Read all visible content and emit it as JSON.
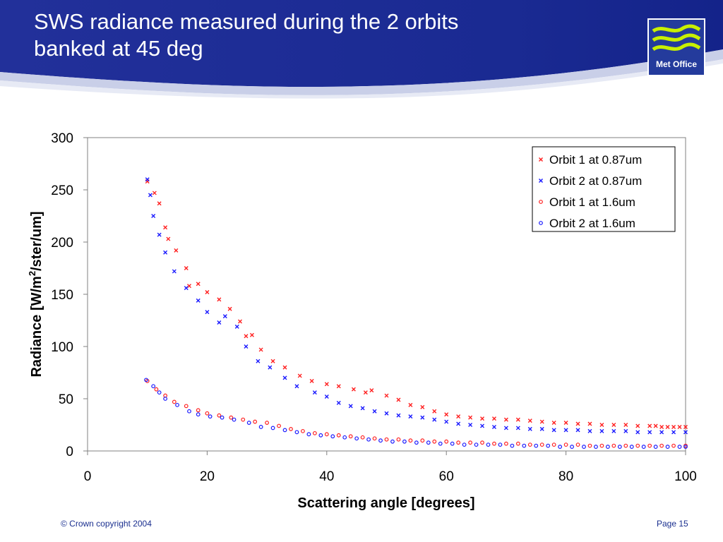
{
  "slide": {
    "title": "SWS radiance measured during the 2 orbits\nbanked at 45 deg",
    "logo_text": "Met Office",
    "footer_left": "© Crown copyright 2004",
    "footer_right": "Page 15"
  },
  "colors": {
    "header_blue": "#1f2f96",
    "orbit1": "#ff2020",
    "orbit2": "#1a1aff",
    "logo_wave": "#c8f000"
  },
  "chart_data": {
    "type": "scatter",
    "title": "",
    "xlabel": "Scattering angle [degrees]",
    "ylabel": "Radiance [W/m2/ster/um]",
    "xlim": [
      0,
      100
    ],
    "ylim": [
      0,
      300
    ],
    "xticks": [
      "0",
      "20",
      "40",
      "60",
      "80",
      "100"
    ],
    "yticks": [
      "0",
      "50",
      "100",
      "150",
      "200",
      "250",
      "300"
    ],
    "grid": false,
    "legend_position": "top-right",
    "series": [
      {
        "name": "Orbit 1 at 0.87um",
        "marker": "x",
        "color": "#ff2020",
        "points": [
          [
            10,
            258
          ],
          [
            11.2,
            247
          ],
          [
            12,
            237
          ],
          [
            13,
            214
          ],
          [
            13.5,
            203
          ],
          [
            14.8,
            192
          ],
          [
            16.5,
            175
          ],
          [
            17,
            158
          ],
          [
            18.5,
            160
          ],
          [
            20,
            152
          ],
          [
            22,
            145
          ],
          [
            23.8,
            136
          ],
          [
            25.5,
            124
          ],
          [
            26.5,
            110
          ],
          [
            27.5,
            111
          ],
          [
            29,
            97
          ],
          [
            31,
            86
          ],
          [
            33,
            80
          ],
          [
            35.5,
            72
          ],
          [
            37.5,
            67
          ],
          [
            40,
            64
          ],
          [
            42,
            62
          ],
          [
            44.5,
            59
          ],
          [
            46.5,
            56
          ],
          [
            47.5,
            58
          ],
          [
            50,
            53
          ],
          [
            52,
            49
          ],
          [
            54,
            44
          ],
          [
            56,
            42
          ],
          [
            58,
            38
          ],
          [
            60,
            35
          ],
          [
            62,
            33
          ],
          [
            64,
            32
          ],
          [
            66,
            31
          ],
          [
            68,
            31
          ],
          [
            70,
            30
          ],
          [
            72,
            30
          ],
          [
            74,
            29
          ],
          [
            76,
            28
          ],
          [
            78,
            27
          ],
          [
            80,
            27
          ],
          [
            82,
            26
          ],
          [
            84,
            26
          ],
          [
            86,
            25
          ],
          [
            88,
            25
          ],
          [
            90,
            25
          ],
          [
            92,
            24
          ],
          [
            94,
            24
          ],
          [
            95,
            24
          ],
          [
            96,
            23
          ],
          [
            97,
            23
          ],
          [
            98,
            23
          ],
          [
            99,
            23
          ],
          [
            100,
            23
          ]
        ]
      },
      {
        "name": "Orbit 2 at 0.87um",
        "marker": "x",
        "color": "#1a1aff",
        "points": [
          [
            10,
            260
          ],
          [
            10.5,
            245
          ],
          [
            11,
            225
          ],
          [
            12,
            207
          ],
          [
            13,
            190
          ],
          [
            14.5,
            172
          ],
          [
            16.5,
            156
          ],
          [
            18.5,
            144
          ],
          [
            20,
            133
          ],
          [
            22,
            123
          ],
          [
            23,
            129
          ],
          [
            25,
            119
          ],
          [
            26.5,
            100
          ],
          [
            28.5,
            86
          ],
          [
            30.5,
            80
          ],
          [
            33,
            70
          ],
          [
            35,
            62
          ],
          [
            38,
            56
          ],
          [
            40,
            52
          ],
          [
            42,
            46
          ],
          [
            44,
            43
          ],
          [
            46,
            41
          ],
          [
            48,
            38
          ],
          [
            50,
            36
          ],
          [
            52,
            34
          ],
          [
            54,
            33
          ],
          [
            56,
            32
          ],
          [
            58,
            30
          ],
          [
            60,
            28
          ],
          [
            62,
            26
          ],
          [
            64,
            25
          ],
          [
            66,
            24
          ],
          [
            68,
            23
          ],
          [
            70,
            22
          ],
          [
            72,
            22
          ],
          [
            74,
            21
          ],
          [
            76,
            21
          ],
          [
            78,
            20
          ],
          [
            80,
            20
          ],
          [
            82,
            20
          ],
          [
            84,
            19
          ],
          [
            86,
            19
          ],
          [
            88,
            19
          ],
          [
            90,
            19
          ],
          [
            92,
            18
          ],
          [
            94,
            18
          ],
          [
            96,
            18
          ],
          [
            98,
            18
          ],
          [
            100,
            18
          ]
        ]
      },
      {
        "name": "Orbit 1 at 1.6um",
        "marker": "o",
        "color": "#ff2020",
        "points": [
          [
            10,
            67
          ],
          [
            11.5,
            59
          ],
          [
            13,
            53
          ],
          [
            14.5,
            47
          ],
          [
            16.5,
            43
          ],
          [
            18.5,
            39
          ],
          [
            20,
            36
          ],
          [
            22,
            34
          ],
          [
            24,
            32
          ],
          [
            26,
            30
          ],
          [
            28,
            28
          ],
          [
            30,
            27
          ],
          [
            32,
            24
          ],
          [
            34,
            21
          ],
          [
            36,
            19
          ],
          [
            38,
            17
          ],
          [
            40,
            16
          ],
          [
            42,
            15
          ],
          [
            44,
            14
          ],
          [
            46,
            13
          ],
          [
            48,
            12
          ],
          [
            50,
            11
          ],
          [
            52,
            11
          ],
          [
            54,
            10
          ],
          [
            56,
            10
          ],
          [
            58,
            9
          ],
          [
            60,
            9
          ],
          [
            62,
            8
          ],
          [
            64,
            8
          ],
          [
            66,
            8
          ],
          [
            68,
            7
          ],
          [
            70,
            7
          ],
          [
            72,
            7
          ],
          [
            74,
            6
          ],
          [
            76,
            6
          ],
          [
            78,
            6
          ],
          [
            80,
            6
          ],
          [
            82,
            6
          ],
          [
            84,
            5
          ],
          [
            86,
            5
          ],
          [
            88,
            5
          ],
          [
            90,
            5
          ],
          [
            92,
            5
          ],
          [
            94,
            5
          ],
          [
            96,
            5
          ],
          [
            98,
            5
          ],
          [
            100,
            5
          ]
        ]
      },
      {
        "name": "Orbit 2 at 1.6um",
        "marker": "o",
        "color": "#1a1aff",
        "points": [
          [
            9.8,
            68
          ],
          [
            11,
            62
          ],
          [
            12,
            56
          ],
          [
            13,
            50
          ],
          [
            15,
            44
          ],
          [
            17,
            38
          ],
          [
            18.5,
            35
          ],
          [
            20.5,
            33
          ],
          [
            22.5,
            32
          ],
          [
            24.5,
            30
          ],
          [
            27,
            27
          ],
          [
            29,
            23
          ],
          [
            31,
            22
          ],
          [
            33,
            20
          ],
          [
            35,
            18
          ],
          [
            37,
            16
          ],
          [
            39,
            15
          ],
          [
            41,
            14
          ],
          [
            43,
            13
          ],
          [
            45,
            12
          ],
          [
            47,
            11
          ],
          [
            49,
            10
          ],
          [
            51,
            9
          ],
          [
            53,
            9
          ],
          [
            55,
            8
          ],
          [
            57,
            8
          ],
          [
            59,
            7
          ],
          [
            61,
            7
          ],
          [
            63,
            6
          ],
          [
            65,
            6
          ],
          [
            67,
            6
          ],
          [
            69,
            6
          ],
          [
            71,
            5
          ],
          [
            73,
            5
          ],
          [
            75,
            5
          ],
          [
            77,
            5
          ],
          [
            79,
            4
          ],
          [
            81,
            4
          ],
          [
            83,
            4
          ],
          [
            85,
            4
          ],
          [
            87,
            4
          ],
          [
            89,
            4
          ],
          [
            91,
            4
          ],
          [
            93,
            4
          ],
          [
            95,
            4
          ],
          [
            97,
            4
          ],
          [
            99,
            4
          ],
          [
            100,
            4
          ]
        ]
      }
    ]
  }
}
